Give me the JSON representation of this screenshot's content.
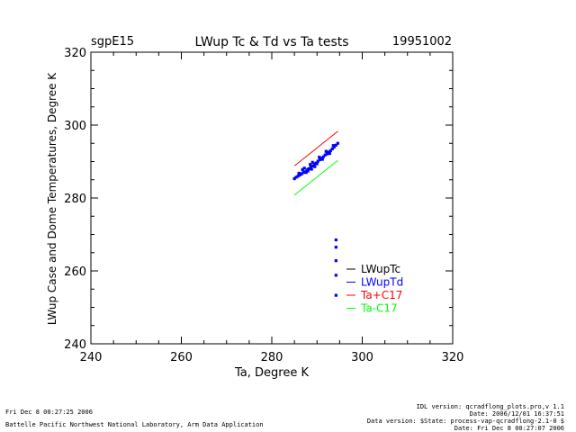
{
  "chart_data": {
    "type": "scatter",
    "site": "sgpE15",
    "title": "LWup Tc & Td vs Ta tests",
    "date": "19951002",
    "xlabel": "Ta, Degree K",
    "ylabel": "LWup Case and Dome Temperatures, Degree K",
    "xlim": [
      240,
      320
    ],
    "ylim": [
      240,
      320
    ],
    "xticks": [
      "240",
      "260",
      "280",
      "300",
      "320"
    ],
    "yticks": [
      "240",
      "260",
      "280",
      "300",
      "320"
    ],
    "legend_position": "right-lower",
    "series": [
      {
        "name": "LWupTc",
        "color": "#000000",
        "kind": "points",
        "points": [
          [
            285.2,
            285.6
          ],
          [
            286.5,
            286.8
          ],
          [
            288.0,
            288.1
          ],
          [
            289.5,
            289.5
          ],
          [
            291.0,
            290.9
          ],
          [
            292.5,
            292.6
          ],
          [
            294.0,
            294.3
          ],
          [
            294.6,
            295.1
          ]
        ]
      },
      {
        "name": "LWupTd",
        "color": "#0000ff",
        "kind": "points",
        "points": [
          [
            285.0,
            285.3
          ],
          [
            285.4,
            285.7
          ],
          [
            285.8,
            286.0
          ],
          [
            286.2,
            286.3
          ],
          [
            286.6,
            286.6
          ],
          [
            287.0,
            287.0
          ],
          [
            287.4,
            287.2
          ],
          [
            287.8,
            287.7
          ],
          [
            288.2,
            288.0
          ],
          [
            288.6,
            288.4
          ],
          [
            289.0,
            288.8
          ],
          [
            289.4,
            289.2
          ],
          [
            289.8,
            289.6
          ],
          [
            290.2,
            290.1
          ],
          [
            290.6,
            290.5
          ],
          [
            291.0,
            290.9
          ],
          [
            291.4,
            291.3
          ],
          [
            291.8,
            291.8
          ],
          [
            292.2,
            292.1
          ],
          [
            292.6,
            292.6
          ],
          [
            293.0,
            293.0
          ],
          [
            293.4,
            293.5
          ],
          [
            293.8,
            294.0
          ],
          [
            294.2,
            294.5
          ],
          [
            294.6,
            295.0
          ],
          [
            286.8,
            287.8
          ],
          [
            287.2,
            288.2
          ],
          [
            287.6,
            287.0
          ],
          [
            288.0,
            287.4
          ],
          [
            288.5,
            289.2
          ],
          [
            289.0,
            289.8
          ],
          [
            289.5,
            288.6
          ],
          [
            290.0,
            289.4
          ],
          [
            290.5,
            291.2
          ],
          [
            291.2,
            290.6
          ],
          [
            292.0,
            292.8
          ],
          [
            292.8,
            292.2
          ],
          [
            293.6,
            294.4
          ],
          [
            286.0,
            286.8
          ],
          [
            288.8,
            287.9
          ],
          [
            294.2,
            268.5
          ],
          [
            294.2,
            266.5
          ],
          [
            294.2,
            262.8
          ],
          [
            294.2,
            258.8
          ],
          [
            294.2,
            253.3
          ]
        ]
      },
      {
        "name": "Ta+C17",
        "color": "#ff0000",
        "kind": "line",
        "points": [
          [
            285.0,
            288.8
          ],
          [
            294.6,
            298.3
          ]
        ]
      },
      {
        "name": "Ta-C17",
        "color": "#00ff00",
        "kind": "line",
        "points": [
          [
            285.0,
            280.8
          ],
          [
            294.6,
            290.3
          ]
        ]
      }
    ]
  },
  "footer": {
    "created": "Fri Dec  8 00:27:25 2006",
    "lab": "Battelle Pacific Northwest National Laboratory, Arm Data Application",
    "idl_version": "IDL version: qcradflong_plots.pro,v 1.1",
    "idl_date": "Date: 2006/12/01 16:37:51",
    "data_version": "Data version: $State: process-vap-qcradflong-2.1-0 $",
    "data_date": "Date: Fri Dec  8 00:27:07 2006"
  }
}
